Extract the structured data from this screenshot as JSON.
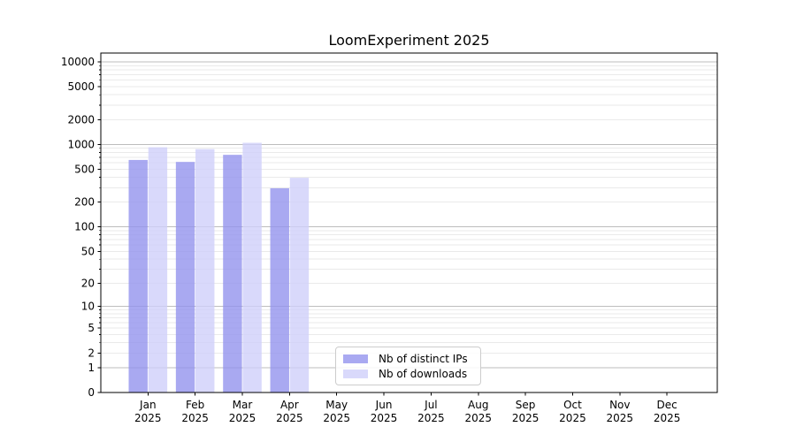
{
  "chart_data": {
    "type": "bar",
    "title": "LoomExperiment 2025",
    "categories": [
      "Jan",
      "Feb",
      "Mar",
      "Apr",
      "May",
      "Jun",
      "Jul",
      "Aug",
      "Sep",
      "Oct",
      "Nov",
      "Dec"
    ],
    "category_year": "2025",
    "series": [
      {
        "name": "Nb of distinct IPs",
        "color": "#9494ee",
        "opacity": 0.8,
        "values": [
          650,
          615,
          750,
          295,
          0,
          0,
          0,
          0,
          0,
          0,
          0,
          0
        ]
      },
      {
        "name": "Nb of downloads",
        "color": "#cfcffa",
        "opacity": 0.8,
        "values": [
          925,
          880,
          1050,
          395,
          0,
          0,
          0,
          0,
          0,
          0,
          0,
          0
        ]
      }
    ],
    "y_axis": {
      "scale": "log1p",
      "tick_labels": [
        10000,
        5000,
        2000,
        1000,
        500,
        200,
        100,
        50,
        20,
        10,
        5,
        2,
        1,
        0
      ],
      "minor_decades": [
        1,
        10,
        100,
        1000
      ],
      "ylim_max": 13000
    },
    "x_axis": {
      "tick_count": 12
    },
    "legend": {
      "position": "lower-center"
    },
    "colors": {
      "grid_major": "#bdbdbd",
      "grid_minor": "#eaeaea",
      "axis": "#000000",
      "text": "#000000",
      "background": "#ffffff"
    }
  }
}
